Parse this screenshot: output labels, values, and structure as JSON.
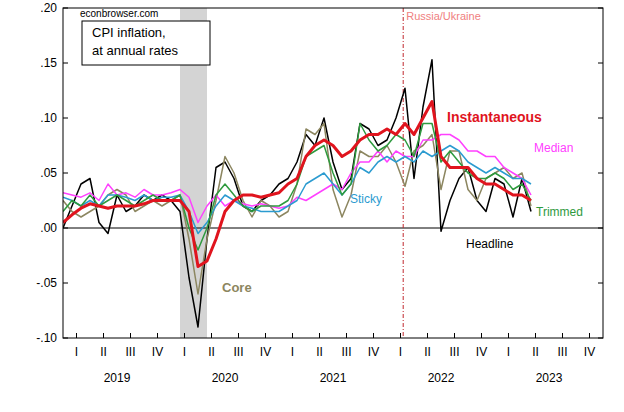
{
  "chart_data": {
    "type": "line",
    "title": "CPI inflation,\nat annual rates",
    "watermark": "econbrowser.com",
    "x": [
      2019,
      2019.0833,
      2019.1667,
      2019.25,
      2019.3333,
      2019.4167,
      2019.5,
      2019.5833,
      2019.6667,
      2019.75,
      2019.8333,
      2019.9167,
      2020,
      2020.0833,
      2020.1667,
      2020.25,
      2020.3333,
      2020.4167,
      2020.5,
      2020.5833,
      2020.6667,
      2020.75,
      2020.8333,
      2020.9167,
      2021,
      2021.0833,
      2021.1667,
      2021.25,
      2021.3333,
      2021.4167,
      2021.5,
      2021.5833,
      2021.6667,
      2021.75,
      2021.8333,
      2021.9167,
      2022,
      2022.0833,
      2022.1667,
      2022.25,
      2022.3333,
      2022.4167,
      2022.5,
      2022.5833,
      2022.6667,
      2022.75,
      2022.8333,
      2022.9167,
      2023,
      2023.0833,
      2023.1667,
      2023.25,
      2023.3333
    ],
    "series": [
      {
        "name": "Headline",
        "color": "#000000",
        "line_style": "solid",
        "values": [
          0.0,
          0.02,
          0.04,
          0.045,
          0.005,
          -0.005,
          0.03,
          0.015,
          0.02,
          0.03,
          0.025,
          0.03,
          0.025,
          0.015,
          -0.045,
          -0.09,
          -0.01,
          0.055,
          0.06,
          0.045,
          0.02,
          0.015,
          0.025,
          0.03,
          0.04,
          0.045,
          0.06,
          0.085,
          0.075,
          0.1,
          0.06,
          0.035,
          0.045,
          0.095,
          0.09,
          0.075,
          0.08,
          0.1,
          0.127,
          0.045,
          0.11,
          0.153,
          -0.003,
          0.025,
          0.045,
          0.055,
          0.025,
          0.015,
          0.045,
          0.04,
          0.01,
          0.045,
          0.015
        ]
      },
      {
        "name": "Core",
        "color": "#8c8660",
        "line_style": "solid",
        "values": [
          0.025,
          0.015,
          0.01,
          0.015,
          0.02,
          0.03,
          0.035,
          0.03,
          0.015,
          0.02,
          0.025,
          0.02,
          0.025,
          0.03,
          -0.01,
          -0.06,
          -0.01,
          0.025,
          0.065,
          0.05,
          0.025,
          0.01,
          0.025,
          0.02,
          0.01,
          0.015,
          0.04,
          0.09,
          0.085,
          0.095,
          0.035,
          0.01,
          0.03,
          0.07,
          0.065,
          0.065,
          0.075,
          0.06,
          0.038,
          0.07,
          0.075,
          0.085,
          0.035,
          0.07,
          0.07,
          0.035,
          0.025,
          0.045,
          0.05,
          0.055,
          0.045,
          0.05,
          0.02
        ]
      },
      {
        "name": "Median",
        "color": "#ff40ff",
        "line_style": "solid",
        "values": [
          0.032,
          0.03,
          0.028,
          0.032,
          0.025,
          0.04,
          0.03,
          0.032,
          0.028,
          0.035,
          0.03,
          0.03,
          0.032,
          0.035,
          0.028,
          0.005,
          0.02,
          0.03,
          0.02,
          0.025,
          0.022,
          0.02,
          0.022,
          0.02,
          0.018,
          0.02,
          0.028,
          0.025,
          0.03,
          0.035,
          0.04,
          0.035,
          0.05,
          0.06,
          0.06,
          0.07,
          0.06,
          0.07,
          0.065,
          0.065,
          0.08,
          0.08,
          0.085,
          0.085,
          0.08,
          0.07,
          0.07,
          0.065,
          0.065,
          0.055,
          0.05,
          0.045,
          0.03
        ]
      },
      {
        "name": "Sticky",
        "color": "#2b9bd0",
        "line_style": "solid",
        "values": [
          0.028,
          0.025,
          0.02,
          0.025,
          0.02,
          0.03,
          0.03,
          0.028,
          0.025,
          0.03,
          0.025,
          0.028,
          0.028,
          0.03,
          0.015,
          -0.005,
          0.005,
          0.02,
          0.03,
          0.025,
          0.02,
          0.018,
          0.015,
          0.015,
          0.015,
          0.02,
          0.025,
          0.04,
          0.045,
          0.05,
          0.04,
          0.03,
          0.04,
          0.055,
          0.05,
          0.06,
          0.065,
          0.06,
          0.065,
          0.06,
          0.07,
          0.065,
          0.07,
          0.075,
          0.07,
          0.06,
          0.055,
          0.05,
          0.055,
          0.05,
          0.045,
          0.045,
          0.04
        ]
      },
      {
        "name": "Trimmed",
        "color": "#2e9a3e",
        "line_style": "solid",
        "values": [
          0.015,
          0.025,
          0.02,
          0.03,
          0.02,
          0.025,
          0.03,
          0.025,
          0.02,
          0.025,
          0.03,
          0.025,
          0.025,
          0.03,
          0.0,
          -0.02,
          0.0,
          0.03,
          0.04,
          0.03,
          0.02,
          0.015,
          0.02,
          0.02,
          0.02,
          0.025,
          0.04,
          0.065,
          0.07,
          0.075,
          0.05,
          0.03,
          0.04,
          0.095,
          0.08,
          0.07,
          0.075,
          0.085,
          0.08,
          0.065,
          0.095,
          0.095,
          0.06,
          0.07,
          0.06,
          0.05,
          0.045,
          0.045,
          0.05,
          0.045,
          0.035,
          0.04,
          0.025
        ]
      },
      {
        "name": "Instantaneous",
        "color": "#e0141e",
        "line_style": "thick",
        "values": [
          0.005,
          0.012,
          0.018,
          0.022,
          0.02,
          0.018,
          0.02,
          0.02,
          0.02,
          0.022,
          0.025,
          0.025,
          0.025,
          0.025,
          0.015,
          -0.035,
          -0.03,
          -0.01,
          0.015,
          0.025,
          0.03,
          0.03,
          0.028,
          0.03,
          0.032,
          0.04,
          0.045,
          0.065,
          0.075,
          0.08,
          0.075,
          0.065,
          0.07,
          0.08,
          0.085,
          0.085,
          0.09,
          0.085,
          0.095,
          0.085,
          0.1,
          0.115,
          0.065,
          0.055,
          0.055,
          0.055,
          0.045,
          0.04,
          0.04,
          0.035,
          0.03,
          0.03,
          0.025
        ]
      }
    ],
    "xlim": [
      2019,
      2024
    ],
    "ylim": [
      -0.1,
      0.2
    ],
    "yticks": [
      {
        "value": -0.1,
        "label": "-.10"
      },
      {
        "value": -0.05,
        "label": "-.05"
      },
      {
        "value": 0,
        "label": ".00"
      },
      {
        "value": 0.05,
        "label": ".05"
      },
      {
        "value": 0.1,
        "label": ".10"
      },
      {
        "value": 0.15,
        "label": ".15"
      },
      {
        "value": 0.2,
        "label": ".20"
      }
    ],
    "xticks": [
      {
        "value": 2019.125,
        "label": "I"
      },
      {
        "value": 2019.375,
        "label": "II"
      },
      {
        "value": 2019.625,
        "label": "III"
      },
      {
        "value": 2019.875,
        "label": "IV"
      },
      {
        "value": 2020.125,
        "label": "I"
      },
      {
        "value": 2020.375,
        "label": "II"
      },
      {
        "value": 2020.625,
        "label": "III"
      },
      {
        "value": 2020.875,
        "label": "IV"
      },
      {
        "value": 2021.125,
        "label": "I"
      },
      {
        "value": 2021.375,
        "label": "II"
      },
      {
        "value": 2021.625,
        "label": "III"
      },
      {
        "value": 2021.875,
        "label": "IV"
      },
      {
        "value": 2022.125,
        "label": "I"
      },
      {
        "value": 2022.375,
        "label": "II"
      },
      {
        "value": 2022.625,
        "label": "III"
      },
      {
        "value": 2022.875,
        "label": "IV"
      },
      {
        "value": 2023.125,
        "label": "I"
      },
      {
        "value": 2023.375,
        "label": "II"
      },
      {
        "value": 2023.625,
        "label": "III"
      },
      {
        "value": 2023.875,
        "label": "IV"
      }
    ],
    "x_group_labels": [
      {
        "value": 2019.5,
        "label": "2019"
      },
      {
        "value": 2020.5,
        "label": "2020"
      },
      {
        "value": 2021.5,
        "label": "2021"
      },
      {
        "value": 2022.5,
        "label": "2022"
      },
      {
        "value": 2023.5,
        "label": "2023"
      }
    ],
    "recessions": [
      {
        "start": 2020.0833,
        "end": 2020.3333
      }
    ],
    "annotations": [
      {
        "x": 2022.15,
        "label": "Russia/Ukraine"
      }
    ],
    "hlines": [
      0
    ],
    "grid": false
  }
}
